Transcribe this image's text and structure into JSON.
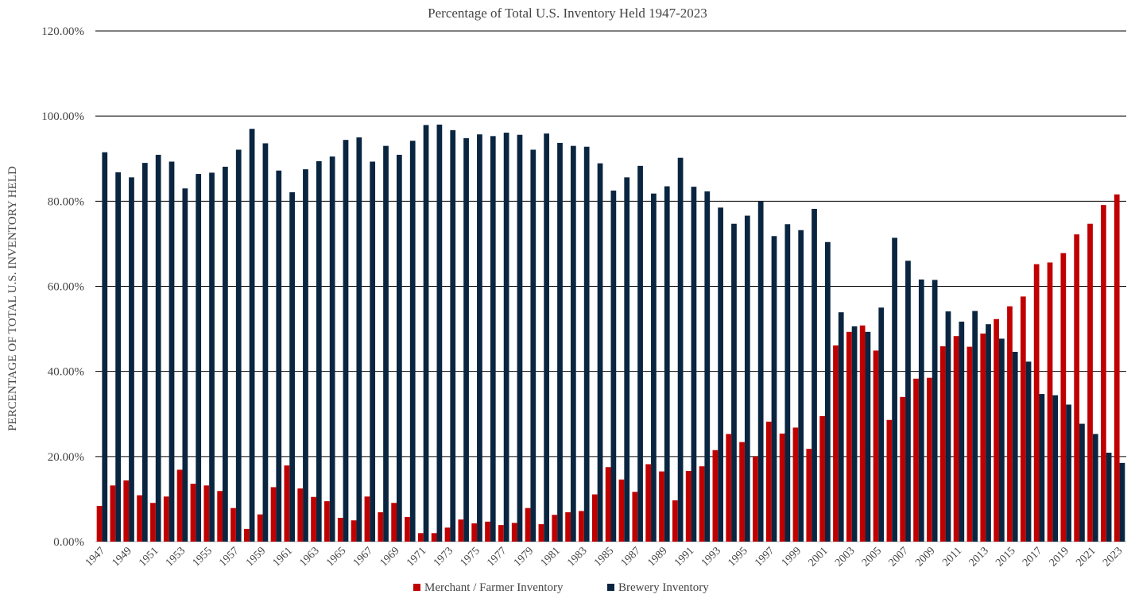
{
  "chart_data": {
    "type": "bar",
    "title": "Percentage of Total U.S. Inventory Held 1947-2023",
    "ylabel": "PERCENTAGE OF TOTAL U.S.  INVENTORY HELD",
    "xlabel": "",
    "ylim": [
      0,
      120
    ],
    "y_ticks": [
      0,
      20,
      40,
      60,
      80,
      100,
      120
    ],
    "y_tick_labels": [
      "0.00%",
      "20.00%",
      "40.00%",
      "60.00%",
      "80.00%",
      "100.00%",
      "120.00%"
    ],
    "grid": true,
    "legend_position": "bottom",
    "categories": [
      "1947",
      "1948",
      "1949",
      "1950",
      "1951",
      "1952",
      "1953",
      "1954",
      "1955",
      "1956",
      "1957",
      "1958",
      "1959",
      "1960",
      "1961",
      "1962",
      "1963",
      "1964",
      "1965",
      "1966",
      "1967",
      "1968",
      "1969",
      "1970",
      "1971",
      "1972",
      "1973",
      "1974",
      "1975",
      "1976",
      "1977",
      "1978",
      "1979",
      "1980",
      "1981",
      "1982",
      "1983",
      "1984",
      "1985",
      "1986",
      "1987",
      "1988",
      "1989",
      "1990",
      "1991",
      "1992",
      "1993",
      "1994",
      "1995",
      "1996",
      "1997",
      "1998",
      "1999",
      "2000",
      "2001",
      "2002",
      "2003",
      "2004",
      "2005",
      "2006",
      "2007",
      "2008",
      "2009",
      "2010",
      "2011",
      "2012",
      "2013",
      "2014",
      "2015",
      "2016",
      "2017",
      "2018",
      "2019",
      "2020",
      "2021",
      "2022",
      "2023"
    ],
    "x_tick_labels": [
      "1947",
      "1949",
      "1951",
      "1953",
      "1955",
      "1957",
      "1959",
      "1961",
      "1963",
      "1965",
      "1967",
      "1969",
      "1971",
      "1973",
      "1975",
      "1977",
      "1979",
      "1981",
      "1983",
      "1985",
      "1987",
      "1989",
      "1991",
      "1993",
      "1995",
      "1997",
      "1999",
      "2001",
      "2003",
      "2005",
      "2007",
      "2009",
      "2011",
      "2013",
      "2015",
      "2017",
      "2019",
      "2021",
      "2023"
    ],
    "series": [
      {
        "name": "Merchant / Farmer Inventory",
        "color": "#c00000",
        "values": [
          8.4,
          13.2,
          14.4,
          10.9,
          9.1,
          10.6,
          16.9,
          13.6,
          13.2,
          11.9,
          7.9,
          3.0,
          6.4,
          12.8,
          17.9,
          12.5,
          10.5,
          9.5,
          5.6,
          5.0,
          10.6,
          6.9,
          9.1,
          5.8,
          2.0,
          2.0,
          3.3,
          5.2,
          4.3,
          4.7,
          3.9,
          4.4,
          7.9,
          4.1,
          6.3,
          6.9,
          7.2,
          11.1,
          17.5,
          14.6,
          11.7,
          18.2,
          16.5,
          9.7,
          16.6,
          17.7,
          21.5,
          25.3,
          23.4,
          20.0,
          28.2,
          25.4,
          26.8,
          21.8,
          29.5,
          46.1,
          49.3,
          50.8,
          44.9,
          28.6,
          34.0,
          38.3,
          38.5,
          45.9,
          48.3,
          45.8,
          48.9,
          52.3,
          55.3,
          57.6,
          65.2,
          65.6,
          67.8,
          72.2,
          74.7,
          79.1,
          81.6
        ]
      },
      {
        "name": "Brewery Inventory",
        "color": "#0a2540",
        "values": [
          91.5,
          86.8,
          85.6,
          89.0,
          90.9,
          89.3,
          83.0,
          86.4,
          86.7,
          88.1,
          92.1,
          97.0,
          93.6,
          87.2,
          82.1,
          87.5,
          89.4,
          90.5,
          94.4,
          95.0,
          89.3,
          93.0,
          90.9,
          94.2,
          97.9,
          98.0,
          96.7,
          94.8,
          95.7,
          95.3,
          96.1,
          95.6,
          92.1,
          95.9,
          93.7,
          93.0,
          92.8,
          88.9,
          82.5,
          85.6,
          88.3,
          81.8,
          83.5,
          90.2,
          83.4,
          82.3,
          78.5,
          74.7,
          76.6,
          80.0,
          71.8,
          74.6,
          73.2,
          78.2,
          70.4,
          53.9,
          50.6,
          49.3,
          55.0,
          71.4,
          66.0,
          61.6,
          61.5,
          54.1,
          51.7,
          54.2,
          51.1,
          47.7,
          44.6,
          42.3,
          34.7,
          34.4,
          32.2,
          27.7,
          25.3,
          20.9,
          18.5
        ]
      }
    ]
  }
}
